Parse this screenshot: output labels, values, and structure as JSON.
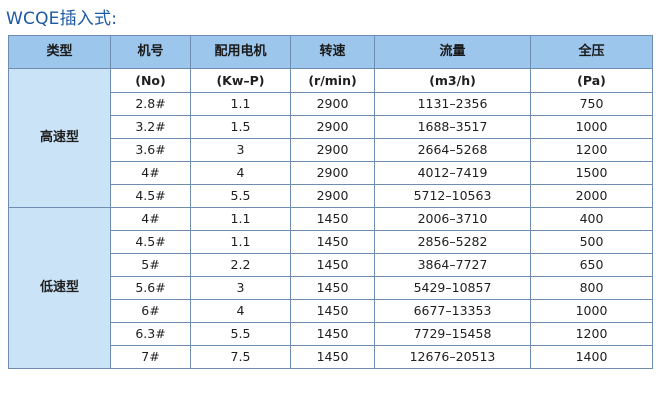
{
  "title": "WCQE插入式:",
  "headers": [
    "类型",
    "机号",
    "配用电机",
    "转速",
    "流量",
    "全压"
  ],
  "units": [
    "(No)",
    "(Kw–P)",
    "(r/min)",
    "(m3/h)",
    "(Pa)"
  ],
  "groups": [
    {
      "name": "高速型",
      "rows": [
        [
          "2.8#",
          "1.1",
          "2900",
          "1131–2356",
          "750"
        ],
        [
          "3.2#",
          "1.5",
          "2900",
          "1688–3517",
          "1000"
        ],
        [
          "3.6#",
          "3",
          "2900",
          "2664–5268",
          "1200"
        ],
        [
          "4#",
          "4",
          "2900",
          "4012–7419",
          "1500"
        ],
        [
          "4.5#",
          "5.5",
          "2900",
          "5712–10563",
          "2000"
        ]
      ]
    },
    {
      "name": "低速型",
      "rows": [
        [
          "4#",
          "1.1",
          "1450",
          "2006–3710",
          "400"
        ],
        [
          "4.5#",
          "1.1",
          "1450",
          "2856–5282",
          "500"
        ],
        [
          "5#",
          "2.2",
          "1450",
          "3864–7727",
          "650"
        ],
        [
          "5.6#",
          "3",
          "1450",
          "5429–10857",
          "800"
        ],
        [
          "6#",
          "4",
          "1450",
          "6677–13353",
          "1000"
        ],
        [
          "6.3#",
          "5.5",
          "1450",
          "7729–15458",
          "1200"
        ],
        [
          "7#",
          "7.5",
          "1450",
          "12676–20513",
          "1400"
        ]
      ]
    }
  ]
}
